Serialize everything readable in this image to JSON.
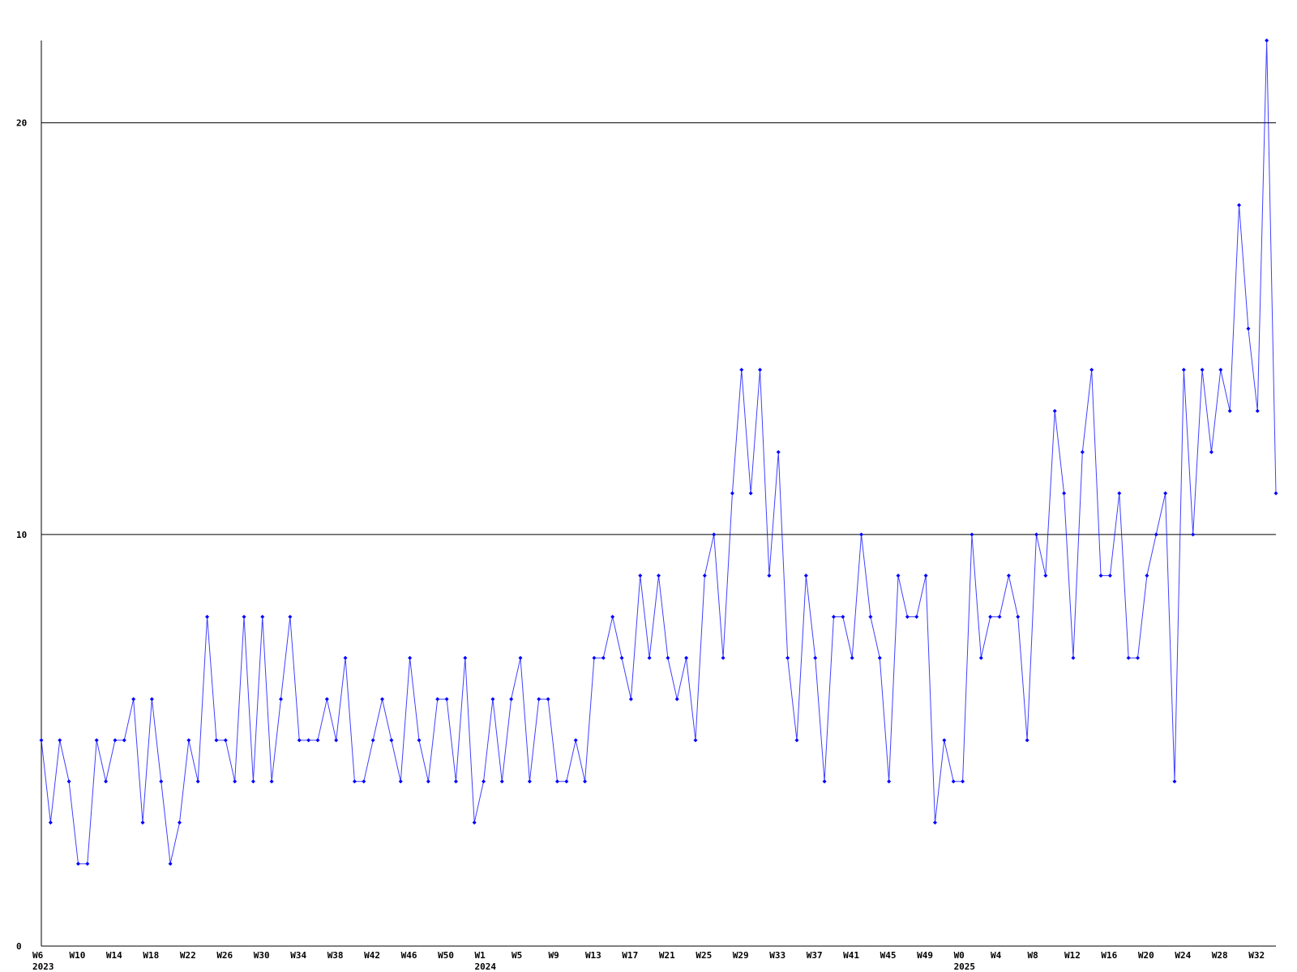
{
  "chart_data": {
    "type": "line",
    "categories": [
      "W6\n2023",
      null,
      null,
      null,
      "W10",
      null,
      null,
      null,
      "W14",
      null,
      null,
      null,
      "W18",
      null,
      null,
      null,
      "W22",
      null,
      null,
      null,
      "W26",
      null,
      null,
      null,
      "W30",
      null,
      null,
      null,
      "W34",
      null,
      null,
      null,
      "W38",
      null,
      null,
      null,
      "W42",
      null,
      null,
      null,
      "W46",
      null,
      null,
      null,
      "W50",
      null,
      null,
      null,
      "W1\n2024",
      null,
      null,
      null,
      "W5",
      null,
      null,
      null,
      "W9",
      null,
      null,
      null,
      "W13",
      null,
      null,
      null,
      "W17",
      null,
      null,
      null,
      "W21",
      null,
      null,
      null,
      "W25",
      null,
      null,
      null,
      "W29",
      null,
      null,
      null,
      "W33",
      null,
      null,
      null,
      "W37",
      null,
      null,
      null,
      "W41",
      null,
      null,
      null,
      "W45",
      null,
      null,
      null,
      "W49",
      null,
      null,
      null,
      "W0\n2025",
      null,
      null,
      null,
      "W4",
      null,
      null,
      null,
      "W8",
      null,
      null,
      null,
      "W12",
      null,
      null,
      null,
      "W16",
      null,
      null,
      null,
      "W20",
      null,
      null,
      null,
      "W24",
      null,
      null,
      null,
      "W28",
      null,
      null,
      null,
      "W32",
      null,
      null
    ],
    "values": [
      5,
      3,
      5,
      4,
      2,
      2,
      5,
      4,
      5,
      5,
      6,
      3,
      6,
      4,
      2,
      3,
      5,
      4,
      8,
      5,
      5,
      4,
      8,
      4,
      8,
      4,
      6,
      8,
      5,
      5,
      5,
      6,
      5,
      7,
      4,
      4,
      5,
      6,
      5,
      4,
      7,
      5,
      4,
      6,
      6,
      4,
      7,
      3,
      4,
      6,
      4,
      6,
      7,
      4,
      6,
      6,
      4,
      4,
      5,
      4,
      7,
      7,
      8,
      7,
      6,
      9,
      7,
      9,
      7,
      6,
      7,
      5,
      9,
      10,
      7,
      11,
      14,
      11,
      14,
      9,
      12,
      7,
      5,
      9,
      7,
      4,
      8,
      8,
      7,
      10,
      8,
      7,
      4,
      9,
      8,
      8,
      9,
      3,
      5,
      4,
      4,
      10,
      7,
      8,
      8,
      9,
      8,
      5,
      10,
      9,
      13,
      11,
      7,
      12,
      14,
      9,
      9,
      11,
      7,
      7,
      9,
      10,
      11,
      4,
      14,
      10,
      14,
      12,
      14,
      13,
      18,
      15,
      13,
      22,
      11
    ],
    "color": "#0000ff",
    "ylim": [
      0,
      22
    ],
    "yticks": [
      0,
      10,
      20
    ],
    "grid": true
  }
}
